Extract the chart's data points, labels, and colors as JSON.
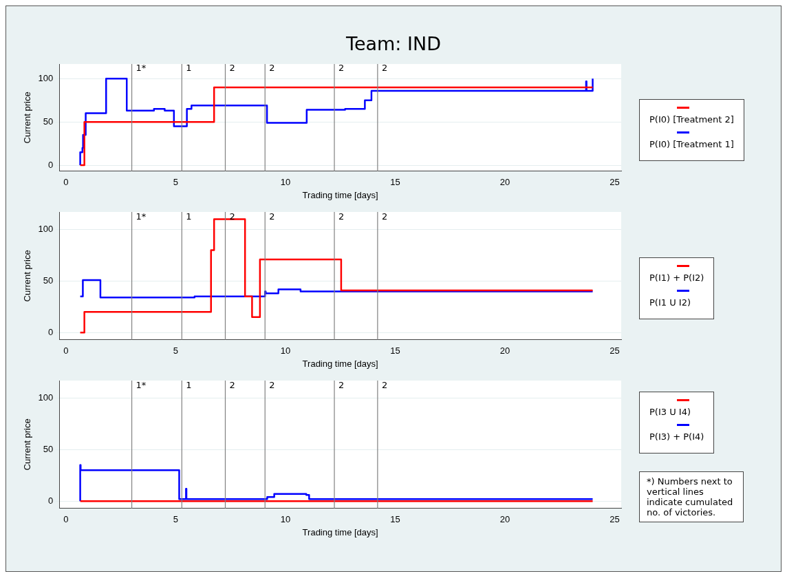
{
  "chart_data": [
    {
      "type": "step",
      "title": "Team: IND",
      "xlabel": "Trading time [days]",
      "ylabel": "Current price",
      "xlim": [
        -0.3,
        25.3
      ],
      "xticks": [
        0,
        5,
        10,
        15,
        20,
        25
      ],
      "ylim": [
        -7,
        117
      ],
      "yticks": [
        0,
        50,
        100
      ],
      "grid": "y",
      "legend": "right",
      "ref_lines": [
        {
          "axis": "x",
          "value": 3.0,
          "color": "#808080"
        },
        {
          "axis": "x",
          "value": 5.28,
          "color": "#808080"
        },
        {
          "axis": "x",
          "value": 7.26,
          "color": "#808080"
        },
        {
          "axis": "x",
          "value": 9.07,
          "color": "#808080"
        },
        {
          "axis": "x",
          "value": 12.23,
          "color": "#808080"
        },
        {
          "axis": "x",
          "value": 14.2,
          "color": "#808080"
        }
      ],
      "annotations": [
        {
          "text": "1*",
          "x": 3.0,
          "y": 112
        },
        {
          "text": "1",
          "x": 5.28,
          "y": 112
        },
        {
          "text": "2",
          "x": 7.26,
          "y": 112
        },
        {
          "text": "2",
          "x": 9.07,
          "y": 112
        },
        {
          "text": "2",
          "x": 12.23,
          "y": 112
        },
        {
          "text": "2",
          "x": 14.2,
          "y": 112
        }
      ],
      "series": [
        {
          "name": "P(I0) [Treatment 2]",
          "color": "#ff0000",
          "x": [
            0.65,
            0.84,
            6.75,
            24
          ],
          "values": [
            0,
            50,
            90,
            90
          ]
        },
        {
          "name": "P(I0) [Treatment 1]",
          "color": "#0000ff",
          "x": [
            0.65,
            0.65,
            0.75,
            0.78,
            0.9,
            1.83,
            2.77,
            4.01,
            4.5,
            4.92,
            5.51,
            5.72,
            9.16,
            10.97,
            12.72,
            13.62,
            13.92,
            23.7,
            23.72,
            24,
            24
          ],
          "values": [
            0,
            15,
            20,
            35,
            60,
            100,
            63,
            65,
            63,
            45,
            65,
            69,
            49,
            64,
            65,
            75,
            86,
            97,
            86,
            100,
            100
          ]
        }
      ]
    },
    {
      "type": "step",
      "xlabel": "Trading time [days]",
      "ylabel": "Current price",
      "xlim": [
        -0.3,
        25.3
      ],
      "xticks": [
        0,
        5,
        10,
        15,
        20,
        25
      ],
      "ylim": [
        -7,
        117
      ],
      "yticks": [
        0,
        50,
        100
      ],
      "grid": "y",
      "legend": "right",
      "ref_lines": [
        {
          "axis": "x",
          "value": 3.0,
          "color": "#808080"
        },
        {
          "axis": "x",
          "value": 5.28,
          "color": "#808080"
        },
        {
          "axis": "x",
          "value": 7.26,
          "color": "#808080"
        },
        {
          "axis": "x",
          "value": 9.07,
          "color": "#808080"
        },
        {
          "axis": "x",
          "value": 12.23,
          "color": "#808080"
        },
        {
          "axis": "x",
          "value": 14.2,
          "color": "#808080"
        }
      ],
      "annotations": [
        {
          "text": "1*",
          "x": 3.0,
          "y": 112
        },
        {
          "text": "1",
          "x": 5.28,
          "y": 112
        },
        {
          "text": "2",
          "x": 7.26,
          "y": 112
        },
        {
          "text": "2",
          "x": 9.07,
          "y": 112
        },
        {
          "text": "2",
          "x": 12.23,
          "y": 112
        },
        {
          "text": "2",
          "x": 14.2,
          "y": 112
        }
      ],
      "series": [
        {
          "name": "P(I1) + P(I2)",
          "color": "#ff0000",
          "x": [
            0.65,
            0.84,
            6.61,
            6.75,
            8.16,
            8.48,
            8.84,
            12.54,
            24
          ],
          "values": [
            0,
            20,
            80,
            110,
            35,
            15,
            71,
            41,
            41
          ]
        },
        {
          "name": "P(I1 U I2)",
          "color": "#0000ff",
          "x": [
            0.65,
            0.77,
            1.57,
            5.86,
            9.07,
            9.1,
            9.68,
            10.69,
            24
          ],
          "values": [
            35,
            51,
            34,
            35,
            40,
            38,
            42,
            40,
            40
          ]
        }
      ]
    },
    {
      "type": "step",
      "xlabel": "Trading time [days]",
      "ylabel": "Current price",
      "xlim": [
        -0.3,
        25.3
      ],
      "xticks": [
        0,
        5,
        10,
        15,
        20,
        25
      ],
      "ylim": [
        -7,
        117
      ],
      "yticks": [
        0,
        50,
        100
      ],
      "grid": "y",
      "legend": "right",
      "ref_lines": [
        {
          "axis": "x",
          "value": 3.0,
          "color": "#808080"
        },
        {
          "axis": "x",
          "value": 5.28,
          "color": "#808080"
        },
        {
          "axis": "x",
          "value": 7.26,
          "color": "#808080"
        },
        {
          "axis": "x",
          "value": 9.07,
          "color": "#808080"
        },
        {
          "axis": "x",
          "value": 12.23,
          "color": "#808080"
        },
        {
          "axis": "x",
          "value": 14.2,
          "color": "#808080"
        }
      ],
      "annotations": [
        {
          "text": "1*",
          "x": 3.0,
          "y": 112
        },
        {
          "text": "1",
          "x": 5.28,
          "y": 112
        },
        {
          "text": "2",
          "x": 7.26,
          "y": 112
        },
        {
          "text": "2",
          "x": 9.07,
          "y": 112
        },
        {
          "text": "2",
          "x": 12.23,
          "y": 112
        },
        {
          "text": "2",
          "x": 14.2,
          "y": 112
        },
        "*) Numbers next to vertical lines indicate cumulated no. of victories."
      ],
      "series": [
        {
          "name": "P(I3 U I4)",
          "color": "#ff0000",
          "x": [
            0.65,
            24
          ],
          "values": [
            0,
            0
          ]
        },
        {
          "name": "P(I3) + P(I4)",
          "color": "#0000ff",
          "x": [
            0.65,
            0.65,
            0.67,
            5.16,
            5.47,
            5.49,
            9.17,
            9.49,
            10.95,
            11.08,
            24
          ],
          "values": [
            0,
            35,
            30,
            2,
            12,
            2,
            4,
            7,
            6,
            2,
            2
          ]
        }
      ]
    }
  ]
}
